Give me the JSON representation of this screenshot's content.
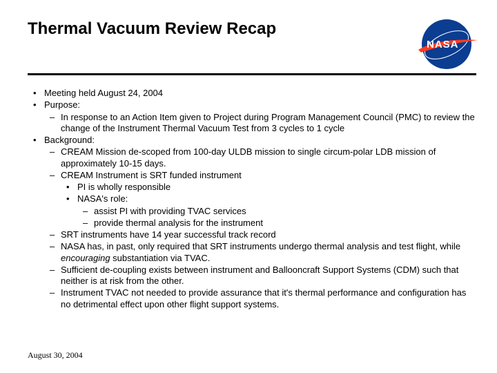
{
  "header": {
    "title": "Thermal Vacuum Review Recap",
    "logo_text": "NASA"
  },
  "colors": {
    "nasa_blue": "#0b3d91",
    "nasa_red": "#fc3d21",
    "text": "#000000",
    "background": "#ffffff"
  },
  "bullets": [
    {
      "level": 1,
      "marker": "dot",
      "text": "Meeting held August 24, 2004"
    },
    {
      "level": 1,
      "marker": "dot",
      "text": "Purpose:"
    },
    {
      "level": 2,
      "marker": "dash",
      "text": "In response to an Action Item given to Project during Program Management Council (PMC) to review the change of the Instrument Thermal Vacuum Test from 3 cycles to 1 cycle"
    },
    {
      "level": 1,
      "marker": "dot",
      "text": "Background:"
    },
    {
      "level": 2,
      "marker": "dash",
      "text": "CREAM Mission de-scoped from 100-day ULDB mission to single circum-polar LDB mission of approximately 10-15 days."
    },
    {
      "level": 2,
      "marker": "dash",
      "text": "CREAM Instrument is SRT funded instrument"
    },
    {
      "level": 3,
      "marker": "dot",
      "text": "PI is wholly responsible"
    },
    {
      "level": 3,
      "marker": "dot",
      "text": "NASA's role:"
    },
    {
      "level": 4,
      "marker": "dash",
      "text": "assist PI with providing TVAC services"
    },
    {
      "level": 4,
      "marker": "dash",
      "text": "provide thermal analysis for the instrument"
    },
    {
      "level": 2,
      "marker": "dash",
      "text": "SRT instruments have 14 year successful track record"
    },
    {
      "level": 2,
      "marker": "dash",
      "text": "NASA has, in past, only required that SRT instruments undergo thermal analysis and test flight, while ",
      "italic_suffix": "encouraging",
      "suffix": " substantiation via TVAC."
    },
    {
      "level": 2,
      "marker": "dash",
      "text": "Sufficient de-coupling exists between instrument and Ballooncraft Support Systems (CDM) such that neither is at risk from the other."
    },
    {
      "level": 2,
      "marker": "dash",
      "text": "Instrument TVAC not needed to provide assurance that it's thermal performance and configuration has no detrimental effect upon other flight support systems."
    }
  ],
  "footer": {
    "date": "August 30, 2004"
  }
}
